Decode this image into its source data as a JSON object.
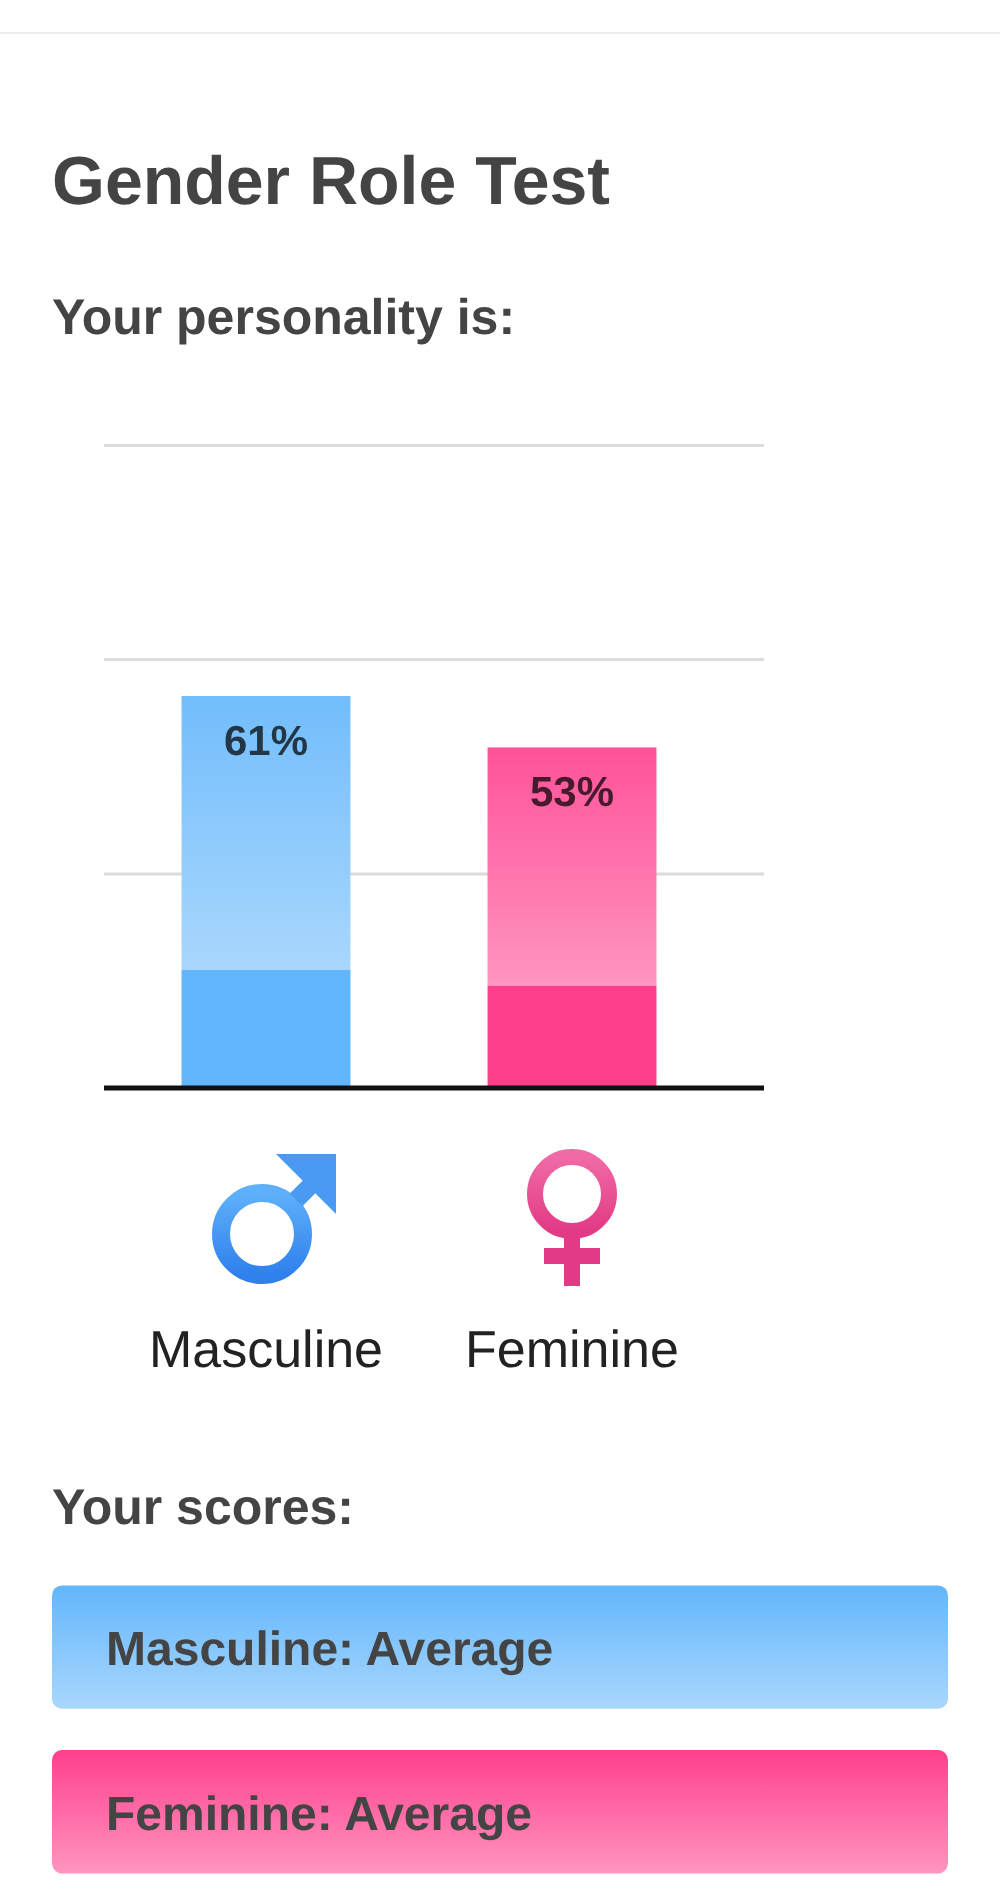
{
  "chart_data": {
    "type": "bar",
    "title": "Gender Role Test",
    "subtitle": "Your personality is:",
    "categories": [
      "Masculine",
      "Feminine"
    ],
    "values": [
      61,
      53
    ],
    "colors": [
      "#62b6fc",
      "#ff3f8c"
    ],
    "value_labels": [
      "61%",
      "53%"
    ],
    "ylim": [
      0,
      100
    ],
    "yticks": [
      {
        "value": 33.3,
        "label": null
      },
      {
        "value": 66.7,
        "label": null
      },
      {
        "value": 100,
        "label": null
      }
    ],
    "grid": "y",
    "tick_labels": "x",
    "annotations": [
      "Your scores:",
      "Masculine: Average",
      "Feminine: Average"
    ]
  }
}
